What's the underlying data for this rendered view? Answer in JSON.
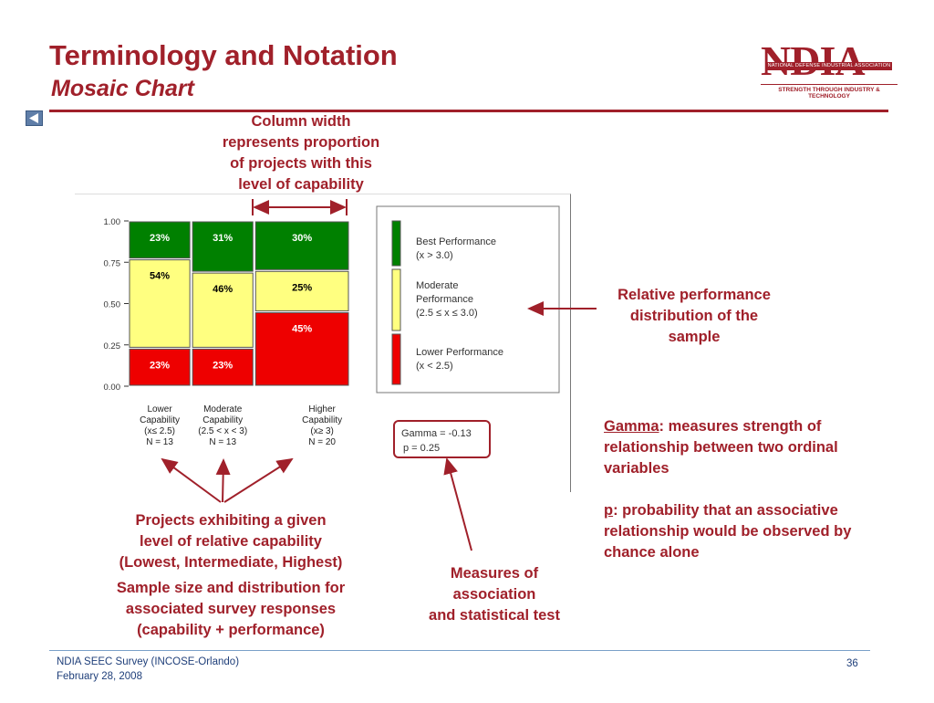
{
  "slide": {
    "title": "Terminology and Notation",
    "subtitle": "Mosaic Chart",
    "logo": {
      "letters": "NDIA",
      "band": "NATIONAL DEFENSE INDUSTRIAL ASSOCIATION",
      "tagline": "STRENGTH THROUGH INDUSTRY & TECHNOLOGY"
    },
    "accent_color": "#a0202a"
  },
  "callouts": {
    "column_width": [
      "Column width",
      "represents proportion",
      "of projects with this",
      "level of capability"
    ],
    "relative_perf": [
      "Relative performance",
      "distribution of the",
      "sample"
    ],
    "projects": [
      "Projects exhibiting a given",
      "level of relative capability",
      "(Lowest, Intermediate, Highest)"
    ],
    "sample_size": [
      "Sample size and distribution for",
      "associated survey responses",
      "(capability + performance)"
    ],
    "measures": [
      "Measures of",
      "association",
      "and statistical test"
    ]
  },
  "definitions": {
    "gamma_term": "Gamma",
    "gamma_text": ": measures strength of relationship between two ordinal variables",
    "p_term": "p",
    "p_text": ": probability that an associative relationship would be observed by chance alone"
  },
  "stats": {
    "gamma": "Gamma = -0.13",
    "p": "p =  0.25"
  },
  "footer": {
    "line1": "NDIA SEEC Survey (INCOSE-Orlando)",
    "line2": "February 28, 2008",
    "page": "36"
  },
  "chart_data": {
    "type": "mosaic",
    "yticks": [
      "1.00",
      "0.75",
      "0.50",
      "0.25",
      "0.00"
    ],
    "ylim": [
      0,
      1
    ],
    "columns": [
      {
        "label": [
          "Lower",
          "Capability",
          "(x≤ 2.5)",
          "N = 13"
        ],
        "n": 13,
        "segments": [
          {
            "name": "Lower Performance",
            "value": 0.23,
            "label": "23%"
          },
          {
            "name": "Moderate Performance",
            "value": 0.54,
            "label": "54%"
          },
          {
            "name": "Best Performance",
            "value": 0.23,
            "label": "23%"
          }
        ]
      },
      {
        "label": [
          "Moderate",
          "Capability",
          "(2.5 < x < 3)",
          "N = 13"
        ],
        "n": 13,
        "segments": [
          {
            "name": "Lower Performance",
            "value": 0.23,
            "label": "23%"
          },
          {
            "name": "Moderate Performance",
            "value": 0.46,
            "label": "46%"
          },
          {
            "name": "Best Performance",
            "value": 0.31,
            "label": "31%"
          }
        ]
      },
      {
        "label": [
          "Higher",
          "Capability",
          "(x≥ 3)",
          "N = 20"
        ],
        "n": 20,
        "segments": [
          {
            "name": "Lower Performance",
            "value": 0.45,
            "label": "45%"
          },
          {
            "name": "Moderate Performance",
            "value": 0.25,
            "label": "25%"
          },
          {
            "name": "Best Performance",
            "value": 0.3,
            "label": "30%"
          }
        ]
      }
    ],
    "legend": [
      {
        "name": "Best Performance",
        "lines": [
          "Best Performance",
          "(x > 3.0)"
        ],
        "color": "#008000"
      },
      {
        "name": "Moderate Performance",
        "lines": [
          "Moderate",
          "Performance",
          "(2.5 ≤ x ≤ 3.0)"
        ],
        "color": "#ffff80"
      },
      {
        "name": "Lower Performance",
        "lines": [
          "Lower Performance",
          "(x < 2.5)"
        ],
        "color": "#ee0000"
      }
    ],
    "colors": {
      "Lower Performance": "#ee0000",
      "Moderate Performance": "#ffff80",
      "Best Performance": "#008000"
    },
    "label_colors": {
      "Lower Performance": "#ffffff",
      "Moderate Performance": "#000000",
      "Best Performance": "#ffffff"
    }
  }
}
